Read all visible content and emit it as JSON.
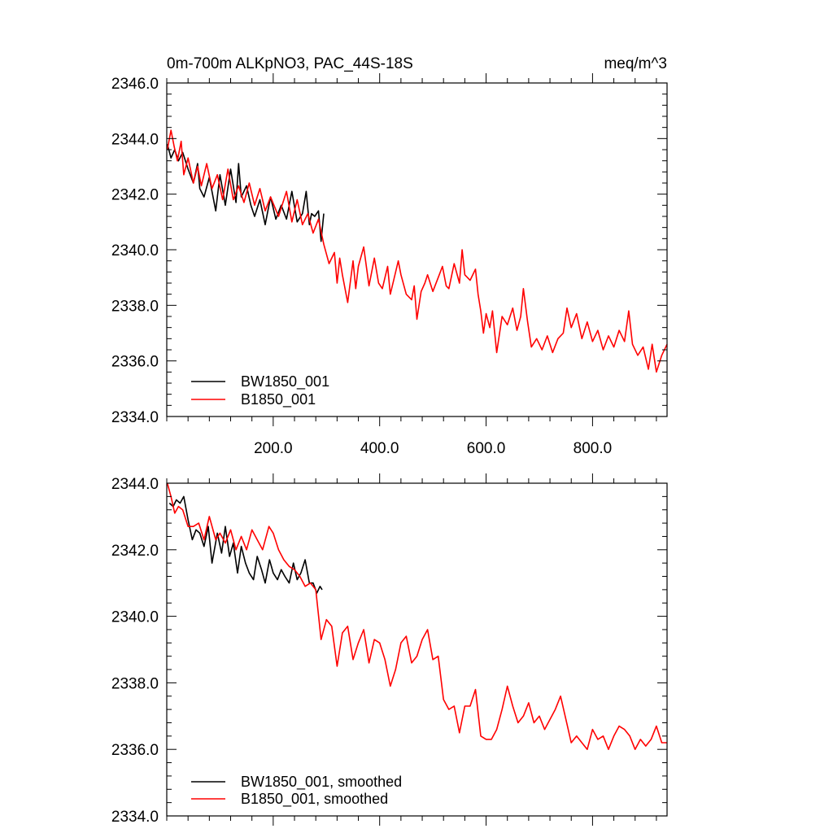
{
  "chart_data": [
    {
      "type": "line",
      "title_left": "0m-700m ALKpNO3, PAC_44S-18S",
      "title_right": "meq/m^3",
      "xlim": [
        0,
        940
      ],
      "ylim": [
        2334,
        2346
      ],
      "xticks": [
        200,
        400,
        600,
        800
      ],
      "xtick_labels": [
        "200.0",
        "400.0",
        "600.0",
        "800.0"
      ],
      "yticks": [
        2334,
        2336,
        2338,
        2340,
        2342,
        2344,
        2346
      ],
      "ytick_labels": [
        "2334.0",
        "2336.0",
        "2338.0",
        "2340.0",
        "2342.0",
        "2344.0",
        "2346.0"
      ],
      "legend_position": "bottom-left",
      "series": [
        {
          "name": "BW1850_001",
          "color": "#000000",
          "x": [
            1,
            8,
            15,
            22,
            30,
            40,
            50,
            58,
            62,
            70,
            80,
            92,
            100,
            110,
            120,
            130,
            135,
            140,
            150,
            158,
            165,
            175,
            185,
            195,
            205,
            215,
            225,
            235,
            245,
            255,
            262,
            268,
            272,
            278,
            285,
            290,
            295
          ],
          "y": [
            2343.8,
            2343.3,
            2343.6,
            2343.2,
            2343.5,
            2342.9,
            2342.4,
            2343.1,
            2342.2,
            2341.9,
            2342.6,
            2341.4,
            2342.7,
            2341.6,
            2342.9,
            2341.7,
            2343.1,
            2341.9,
            2342.3,
            2341.6,
            2341.2,
            2341.8,
            2340.9,
            2341.9,
            2341.1,
            2341.6,
            2341.1,
            2342.1,
            2341.0,
            2341.3,
            2342.1,
            2340.9,
            2341.3,
            2341.2,
            2341.4,
            2340.3,
            2341.3
          ]
        },
        {
          "name": "B1850_001",
          "color": "#ff0000",
          "x": [
            1,
            8,
            14,
            20,
            27,
            32,
            40,
            50,
            58,
            65,
            75,
            85,
            95,
            105,
            115,
            125,
            135,
            145,
            155,
            165,
            175,
            185,
            195,
            210,
            225,
            235,
            245,
            255,
            265,
            275,
            285,
            295,
            305,
            315,
            320,
            325,
            330,
            340,
            350,
            355,
            360,
            370,
            380,
            390,
            398,
            405,
            415,
            420,
            425,
            435,
            440,
            450,
            460,
            465,
            470,
            478,
            485,
            490,
            500,
            510,
            518,
            525,
            530,
            540,
            550,
            555,
            560,
            570,
            580,
            585,
            590,
            595,
            600,
            607,
            612,
            620,
            630,
            640,
            650,
            658,
            665,
            670,
            678,
            685,
            695,
            705,
            715,
            725,
            735,
            745,
            752,
            760,
            770,
            780,
            790,
            800,
            810,
            820,
            830,
            840,
            850,
            860,
            868,
            875,
            885,
            895,
            905,
            912,
            920,
            930,
            940
          ],
          "y": [
            2343.6,
            2344.3,
            2343.7,
            2343.2,
            2343.9,
            2342.7,
            2343.3,
            2342.4,
            2343.0,
            2342.3,
            2343.1,
            2342.2,
            2342.7,
            2341.8,
            2342.9,
            2341.8,
            2342.3,
            2341.7,
            2342.4,
            2341.6,
            2342.2,
            2341.4,
            2341.9,
            2341.2,
            2342.1,
            2341.0,
            2341.8,
            2340.9,
            2341.3,
            2340.6,
            2341.1,
            2340.2,
            2339.5,
            2339.9,
            2338.8,
            2339.7,
            2339.1,
            2338.1,
            2339.6,
            2338.6,
            2339.4,
            2340.1,
            2338.7,
            2339.7,
            2338.8,
            2338.6,
            2339.4,
            2338.4,
            2338.8,
            2339.6,
            2339.1,
            2338.4,
            2338.2,
            2338.7,
            2337.5,
            2338.5,
            2338.8,
            2339.1,
            2338.5,
            2339.0,
            2339.4,
            2338.7,
            2338.6,
            2339.5,
            2338.8,
            2340.0,
            2339.1,
            2338.9,
            2339.3,
            2338.4,
            2337.8,
            2337.0,
            2337.7,
            2337.2,
            2337.8,
            2336.3,
            2337.6,
            2337.3,
            2337.9,
            2337.1,
            2337.6,
            2338.6,
            2337.4,
            2336.5,
            2336.8,
            2336.4,
            2336.9,
            2336.3,
            2336.8,
            2337.0,
            2337.9,
            2337.2,
            2337.7,
            2336.8,
            2337.4,
            2336.7,
            2337.1,
            2336.4,
            2336.9,
            2336.5,
            2337.1,
            2336.7,
            2337.8,
            2336.6,
            2336.2,
            2336.5,
            2335.7,
            2336.6,
            2335.6,
            2336.2,
            2336.6
          ]
        }
      ]
    },
    {
      "type": "line",
      "xlim": [
        0,
        940
      ],
      "ylim": [
        2334,
        2344
      ],
      "xticks": [
        200,
        400,
        600,
        800
      ],
      "yticks": [
        2334,
        2336,
        2338,
        2340,
        2342,
        2344
      ],
      "ytick_labels": [
        "2334.0",
        "2336.0",
        "2338.0",
        "2340.0",
        "2342.0",
        "2344.0"
      ],
      "legend_position": "bottom-left",
      "series": [
        {
          "name": "BW1850_001, smoothed",
          "color": "#000000",
          "x": [
            5,
            12,
            18,
            25,
            32,
            40,
            48,
            55,
            62,
            70,
            78,
            85,
            95,
            103,
            110,
            118,
            125,
            133,
            140,
            148,
            155,
            163,
            170,
            178,
            185,
            193,
            200,
            208,
            215,
            222,
            230,
            238,
            245,
            252,
            260,
            268,
            275,
            282,
            288,
            292
          ],
          "y": [
            2343.4,
            2343.3,
            2343.5,
            2343.4,
            2343.6,
            2342.9,
            2342.3,
            2342.6,
            2342.5,
            2342.1,
            2342.7,
            2341.6,
            2342.5,
            2341.9,
            2342.7,
            2341.8,
            2342.2,
            2341.3,
            2342.1,
            2341.6,
            2341.3,
            2341.1,
            2341.8,
            2341.4,
            2341.0,
            2341.7,
            2341.3,
            2341.1,
            2341.4,
            2341.2,
            2341.0,
            2341.6,
            2341.1,
            2341.3,
            2341.7,
            2341.0,
            2341.0,
            2340.7,
            2340.9,
            2340.8
          ]
        },
        {
          "name": "B1850_001, smoothed",
          "color": "#ff0000",
          "x": [
            1,
            8,
            15,
            22,
            30,
            40,
            50,
            60,
            70,
            80,
            92,
            100,
            110,
            120,
            130,
            140,
            150,
            160,
            170,
            180,
            192,
            200,
            210,
            220,
            230,
            240,
            250,
            260,
            270,
            280,
            290,
            300,
            310,
            320,
            330,
            340,
            350,
            360,
            370,
            380,
            390,
            400,
            410,
            420,
            430,
            440,
            450,
            460,
            470,
            480,
            490,
            500,
            510,
            520,
            530,
            540,
            550,
            560,
            570,
            580,
            590,
            600,
            610,
            620,
            630,
            640,
            650,
            660,
            670,
            680,
            690,
            700,
            710,
            720,
            730,
            740,
            750,
            760,
            770,
            780,
            790,
            800,
            810,
            820,
            830,
            840,
            850,
            860,
            870,
            880,
            890,
            900,
            910,
            920,
            930,
            940
          ],
          "y": [
            2344.0,
            2343.6,
            2343.1,
            2343.3,
            2343.2,
            2342.7,
            2342.7,
            2342.8,
            2342.3,
            2343.0,
            2342.3,
            2342.5,
            2342.2,
            2342.6,
            2342.0,
            2342.4,
            2342.0,
            2342.6,
            2342.3,
            2342.0,
            2342.7,
            2342.5,
            2342.0,
            2341.7,
            2341.5,
            2341.4,
            2341.2,
            2340.9,
            2341.0,
            2340.8,
            2339.3,
            2339.9,
            2339.7,
            2338.5,
            2339.5,
            2339.7,
            2338.7,
            2339.2,
            2339.6,
            2338.6,
            2339.3,
            2339.2,
            2338.7,
            2337.9,
            2338.4,
            2339.2,
            2339.4,
            2338.6,
            2338.8,
            2339.3,
            2339.6,
            2338.7,
            2338.8,
            2337.5,
            2337.2,
            2337.3,
            2336.5,
            2337.3,
            2337.3,
            2337.8,
            2336.4,
            2336.3,
            2336.3,
            2336.6,
            2337.2,
            2337.9,
            2337.3,
            2336.8,
            2337.0,
            2337.4,
            2336.8,
            2337.0,
            2336.6,
            2336.9,
            2337.2,
            2337.6,
            2336.9,
            2336.2,
            2336.4,
            2336.2,
            2336.0,
            2336.6,
            2336.3,
            2336.4,
            2336.0,
            2336.4,
            2336.7,
            2336.6,
            2336.4,
            2336.0,
            2336.3,
            2336.1,
            2336.3,
            2336.7,
            2336.2,
            2336.2
          ]
        }
      ]
    }
  ]
}
